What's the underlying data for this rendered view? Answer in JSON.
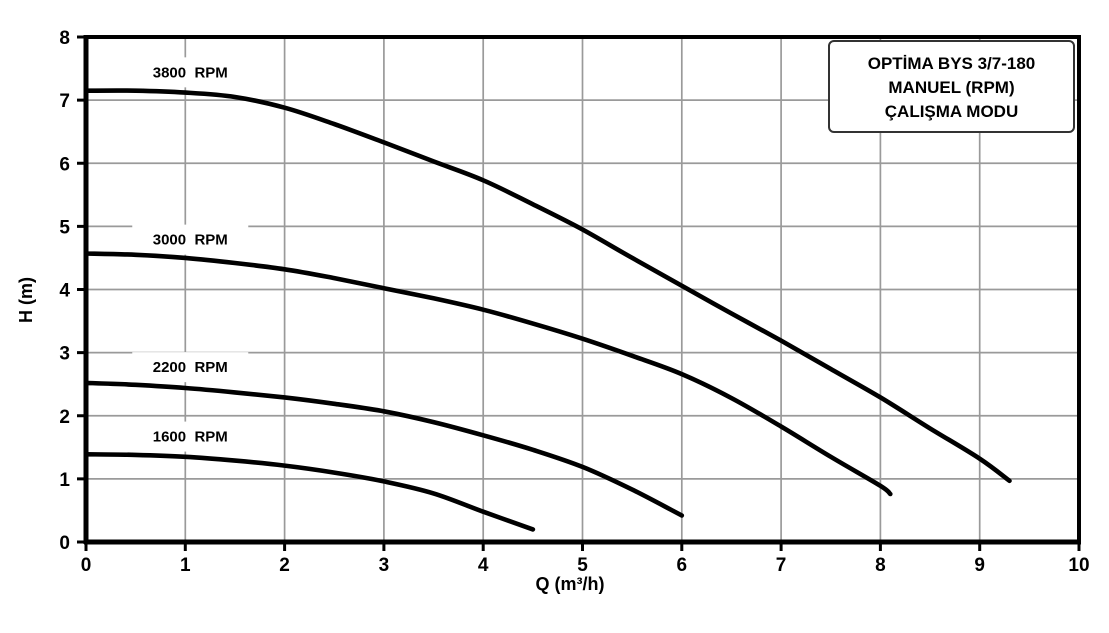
{
  "chart_data": {
    "type": "line",
    "title": "",
    "xlabel": "Q (m³/h)",
    "ylabel": "H (m)",
    "xlim": [
      0,
      10
    ],
    "ylim": [
      0,
      8
    ],
    "xticks": [
      0,
      1,
      2,
      3,
      4,
      5,
      6,
      7,
      8,
      9,
      10
    ],
    "yticks": [
      0,
      1,
      2,
      3,
      4,
      5,
      6,
      7,
      8
    ],
    "grid": true,
    "legend_box": {
      "position": "top-right",
      "lines": [
        "OPTİMA BYS 3/7-180",
        "MANUEL (RPM)",
        "ÇALIŞMA MODU"
      ]
    },
    "series": [
      {
        "name": "3800 RPM",
        "rpm": 3800,
        "label": "3800  RPM",
        "label_at": [
          1.05,
          7.44
        ],
        "points": [
          [
            0,
            7.15
          ],
          [
            0.5,
            7.15
          ],
          [
            1,
            7.12
          ],
          [
            1.5,
            7.05
          ],
          [
            2,
            6.88
          ],
          [
            2.5,
            6.62
          ],
          [
            3,
            6.33
          ],
          [
            3.5,
            6.03
          ],
          [
            4,
            5.73
          ],
          [
            4.5,
            5.35
          ],
          [
            5,
            4.95
          ],
          [
            5.5,
            4.5
          ],
          [
            6,
            4.06
          ],
          [
            6.5,
            3.62
          ],
          [
            7,
            3.19
          ],
          [
            7.5,
            2.74
          ],
          [
            8,
            2.29
          ],
          [
            8.5,
            1.8
          ],
          [
            9,
            1.32
          ],
          [
            9.3,
            0.97
          ]
        ]
      },
      {
        "name": "3000 RPM",
        "rpm": 3000,
        "label": "3000  RPM",
        "label_at": [
          1.05,
          4.79
        ],
        "points": [
          [
            0,
            4.57
          ],
          [
            0.5,
            4.55
          ],
          [
            1,
            4.5
          ],
          [
            1.5,
            4.42
          ],
          [
            2,
            4.32
          ],
          [
            2.5,
            4.18
          ],
          [
            3,
            4.02
          ],
          [
            3.5,
            3.86
          ],
          [
            4,
            3.68
          ],
          [
            4.5,
            3.46
          ],
          [
            5,
            3.22
          ],
          [
            5.5,
            2.95
          ],
          [
            6,
            2.66
          ],
          [
            6.5,
            2.28
          ],
          [
            7,
            1.83
          ],
          [
            7.5,
            1.35
          ],
          [
            8,
            0.89
          ],
          [
            8.1,
            0.76
          ]
        ]
      },
      {
        "name": "2200 RPM",
        "rpm": 2200,
        "label": "2200  RPM",
        "label_at": [
          1.05,
          2.77
        ],
        "points": [
          [
            0,
            2.52
          ],
          [
            0.5,
            2.49
          ],
          [
            1,
            2.44
          ],
          [
            1.5,
            2.37
          ],
          [
            2,
            2.29
          ],
          [
            2.5,
            2.19
          ],
          [
            3,
            2.07
          ],
          [
            3.5,
            1.9
          ],
          [
            4,
            1.69
          ],
          [
            4.5,
            1.46
          ],
          [
            5,
            1.19
          ],
          [
            5.5,
            0.83
          ],
          [
            6,
            0.42
          ]
        ]
      },
      {
        "name": "1600 RPM",
        "rpm": 1600,
        "label": "1600  RPM",
        "label_at": [
          1.05,
          1.67
        ],
        "points": [
          [
            0,
            1.39
          ],
          [
            0.5,
            1.38
          ],
          [
            1,
            1.35
          ],
          [
            1.5,
            1.29
          ],
          [
            2,
            1.21
          ],
          [
            2.5,
            1.1
          ],
          [
            3,
            0.96
          ],
          [
            3.5,
            0.77
          ],
          [
            4,
            0.48
          ],
          [
            4.5,
            0.2
          ]
        ]
      }
    ],
    "colors": {
      "curve": "#000000",
      "grid": "#9a9a9a",
      "frame": "#000000",
      "text": "#000000",
      "background": "#ffffff",
      "legend_border": "#333333"
    }
  }
}
